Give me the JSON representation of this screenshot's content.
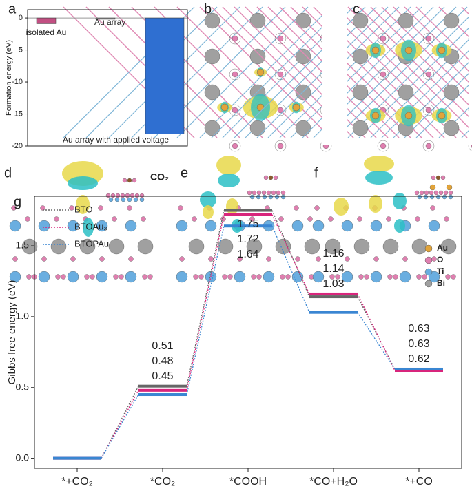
{
  "panels": [
    "a",
    "b",
    "c",
    "d",
    "e",
    "f",
    "g"
  ],
  "co2_label": "CO₂",
  "atoms": [
    {
      "label": "Au",
      "color": "#e2a43a"
    },
    {
      "label": "O",
      "color": "#e07fb0"
    },
    {
      "label": "Ti",
      "color": "#6aaee0"
    },
    {
      "label": "Bi",
      "color": "#a0a0a0"
    }
  ],
  "chart_data": [
    {
      "type": "bar",
      "ylabel": "Formation energy (eV)",
      "categories": [
        "isolated Au",
        "Au array",
        "Au array with applied voltage"
      ],
      "values": [
        -0.9,
        -0.2,
        -18.1
      ],
      "colors": [
        "#c24f82",
        "#8a8a8a",
        "#2f6fd1"
      ],
      "ylim": [
        -20,
        1.3
      ],
      "yticks": [
        0,
        -5,
        -10,
        -15,
        -20
      ]
    },
    {
      "type": "energy-diagram",
      "ylabel": "Gibbs free energy (eV)",
      "categories": [
        "*+CO₂",
        "*CO₂",
        "*COOH",
        "*CO+H₂O",
        "*+CO"
      ],
      "series": [
        {
          "name": "BTO",
          "color": "#666666",
          "values": [
            0,
            0.51,
            1.75,
            1.14,
            0.63
          ]
        },
        {
          "name": "BTOAu₃",
          "color": "#d8257c",
          "values": [
            0,
            0.48,
            1.72,
            1.16,
            0.62
          ]
        },
        {
          "name": "BTOPAu",
          "color": "#3a86d2",
          "values": [
            0,
            0.45,
            1.64,
            1.03,
            0.63
          ]
        }
      ],
      "ylim": [
        -0.07,
        1.85
      ],
      "yticks": [
        {
          "value": 0,
          "label": "0.0"
        },
        0.5,
        {
          "value": 1,
          "label": "1.0"
        },
        1.5
      ],
      "legend": "upper left"
    }
  ]
}
